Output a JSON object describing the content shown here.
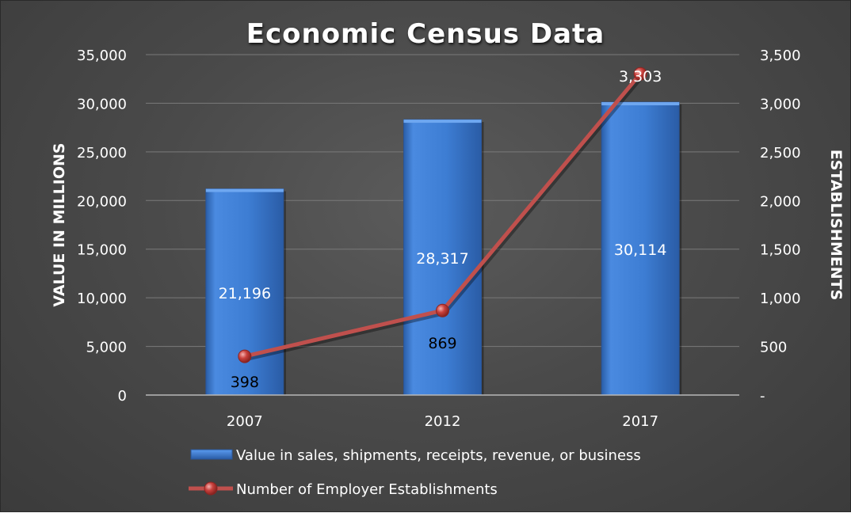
{
  "chart_data": {
    "type": "bar",
    "title": "Economic Census Data",
    "categories": [
      "2007",
      "2012",
      "2017"
    ],
    "series": [
      {
        "name": "Value in sales, shipments, receipts, revenue, or business",
        "kind": "bar",
        "axis": "left",
        "values": [
          21196,
          28317,
          30114
        ],
        "labels": [
          "21,196",
          "28,317",
          "30,114"
        ],
        "color": "#3f7fd4"
      },
      {
        "name": "Number of Employer Establishments",
        "kind": "line",
        "axis": "right",
        "values": [
          398,
          869,
          3303
        ],
        "labels": [
          "398",
          "869",
          "3,303"
        ],
        "color": "#c0504d"
      }
    ],
    "ylabel": "VALUE IN MILLIONS",
    "y2label": "ESTABLISHMENTS",
    "ylim": [
      0,
      35000
    ],
    "y2lim": [
      0,
      3500
    ],
    "yticks": [
      0,
      5000,
      10000,
      15000,
      20000,
      25000,
      30000,
      35000
    ],
    "ytick_labels": [
      "0",
      "5,000",
      "10,000",
      "15,000",
      "20,000",
      "25,000",
      "30,000",
      "35,000"
    ],
    "y2ticks": [
      0,
      500,
      1000,
      1500,
      2000,
      2500,
      3000,
      3500
    ],
    "y2tick_labels": [
      "-",
      "500",
      "1,000",
      "1,500",
      "2,000",
      "2,500",
      "3,000",
      "3,500"
    ],
    "grid": true,
    "legend_position": "bottom"
  }
}
